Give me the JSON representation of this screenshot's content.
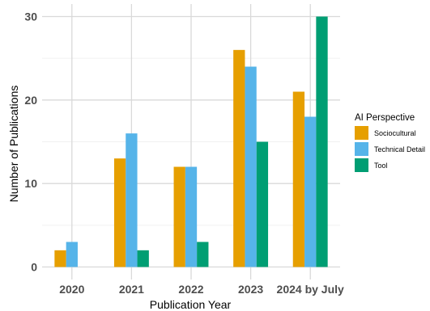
{
  "chart_data": {
    "type": "bar",
    "categories": [
      "2020",
      "2021",
      "2022",
      "2023",
      "2024 by July"
    ],
    "series": [
      {
        "name": "Sociocultural",
        "color": "#E69F00",
        "values": [
          2,
          13,
          12,
          26,
          21
        ]
      },
      {
        "name": "Technical Detail",
        "color": "#56B4E9",
        "values": [
          3,
          16,
          12,
          24,
          18
        ]
      },
      {
        "name": "Tool",
        "color": "#009E73",
        "values": [
          0,
          2,
          3,
          15,
          30
        ]
      }
    ],
    "xlabel": "Publication Year",
    "ylabel": "Number of Publications",
    "ylim": [
      -1.5,
      31.5
    ],
    "yticks": [
      0,
      10,
      20,
      30
    ],
    "legend_title": "AI Perspective",
    "legend_position": "right",
    "grid": true
  }
}
